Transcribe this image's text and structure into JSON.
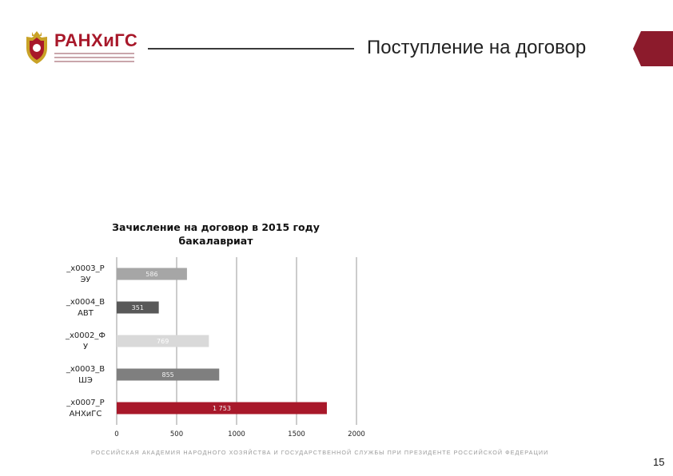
{
  "header": {
    "brand": "РАНХиГС",
    "title": "Поступление на договор",
    "accent_color": "#a8182a"
  },
  "chart_data": {
    "type": "bar",
    "orientation": "horizontal",
    "title": "Зачисление на договор в 2015 году бакалавриат",
    "title_lines": [
      "Зачисление на договор в 2015 году",
      "бакалавриат"
    ],
    "categories": [
      "_x0003_РЭУ",
      "_x0004_ВАВТ",
      "_x0002_ФУ",
      "_x0003_ВШЭ",
      "_x0007_РАНХиГС"
    ],
    "category_lines": [
      [
        "_x0003_Р",
        "ЭУ"
      ],
      [
        "_x0004_В",
        "АВТ"
      ],
      [
        "_x0002_Ф",
        "У"
      ],
      [
        "_x0003_В",
        "ШЭ"
      ],
      [
        "_x0007_Р",
        "АНХиГС"
      ]
    ],
    "values": [
      586,
      351,
      769,
      855,
      1753
    ],
    "value_labels": [
      "586",
      "351",
      "769",
      "855",
      "1 753"
    ],
    "colors": [
      "#a6a6a6",
      "#595959",
      "#d9d9d9",
      "#7f7f7f",
      "#a8182a"
    ],
    "xlim": [
      0,
      2000
    ],
    "xticks": [
      0,
      500,
      1000,
      1500,
      2000
    ],
    "grid": true,
    "legend": "none"
  },
  "footer": {
    "text": "РОССИЙСКАЯ АКАДЕМИЯ НАРОДНОГО ХОЗЯЙСТВА И ГОСУДАРСТВЕННОЙ СЛУЖБЫ ПРИ ПРЕЗИДЕНТЕ РОССИЙСКОЙ ФЕДЕРАЦИИ",
    "page_number": "15"
  }
}
